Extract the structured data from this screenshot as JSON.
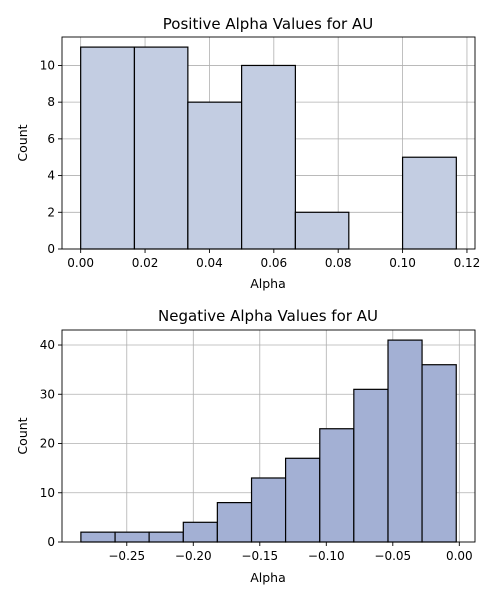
{
  "chart_data": [
    {
      "type": "bar",
      "title": "Positive Alpha Values for AU",
      "xlabel": "Alpha",
      "ylabel": "Count",
      "bin_edges": [
        0.0,
        0.0167,
        0.0333,
        0.05,
        0.0667,
        0.0833,
        0.1,
        0.1167
      ],
      "values": [
        11,
        11,
        8,
        10,
        2,
        0,
        5
      ],
      "xlim": [
        -0.0058,
        0.1225
      ],
      "ylim": [
        0,
        11.55
      ],
      "xticks": [
        0.0,
        0.02,
        0.04,
        0.06,
        0.08,
        0.1,
        0.12
      ],
      "xtick_labels": [
        "0.00",
        "0.02",
        "0.04",
        "0.06",
        "0.08",
        "0.10",
        "0.12"
      ],
      "yticks": [
        0,
        2,
        4,
        6,
        8,
        10
      ],
      "ytick_labels": [
        "0",
        "2",
        "4",
        "6",
        "8",
        "10"
      ],
      "bar_color": "#c3cde2",
      "edge_color": "#000000",
      "grid": true
    },
    {
      "type": "bar",
      "title": "Negative Alpha Values for AU",
      "xlabel": "Alpha",
      "ylabel": "Count",
      "bin_edges": [
        -0.2845,
        -0.2588,
        -0.2332,
        -0.2075,
        -0.1819,
        -0.1562,
        -0.1306,
        -0.1049,
        -0.0793,
        -0.0536,
        -0.028,
        -0.0023
      ],
      "values": [
        2,
        2,
        2,
        4,
        8,
        13,
        17,
        23,
        31,
        41,
        36
      ],
      "xlim": [
        -0.2987,
        0.0118
      ],
      "ylim": [
        0,
        43.05
      ],
      "xticks": [
        -0.25,
        -0.2,
        -0.15,
        -0.1,
        -0.05,
        0.0
      ],
      "xtick_labels": [
        "−0.25",
        "−0.20",
        "−0.15",
        "−0.10",
        "−0.05",
        "0.00"
      ],
      "yticks": [
        0,
        10,
        20,
        30,
        40
      ],
      "ytick_labels": [
        "0",
        "10",
        "20",
        "30",
        "40"
      ],
      "bar_color": "#a3b0d4",
      "edge_color": "#000000",
      "grid": true
    }
  ]
}
